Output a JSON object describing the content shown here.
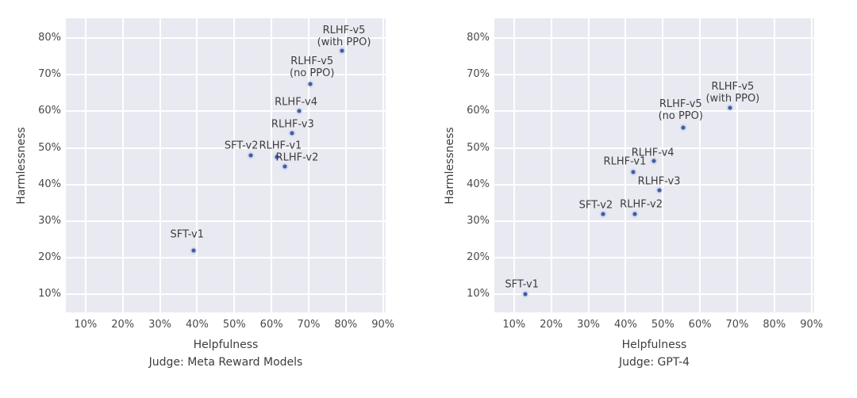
{
  "colors": {
    "figure_bg": "#ffffff",
    "plot_bg": "#e9e9f2",
    "grid": "#ffffff",
    "dot": "#3e5ca8",
    "text": "#3d3d3d",
    "tick_text": "#4a4a4a"
  },
  "chart_data": [
    {
      "type": "scatter",
      "title": "Judge: Meta Reward Models",
      "xlabel": "Helpfulness",
      "ylabel": "Harmlessness",
      "xlim": [
        4.7,
        90.7
      ],
      "ylim": [
        5.1,
        85.4
      ],
      "xticks": [
        10,
        20,
        30,
        40,
        50,
        60,
        70,
        80,
        90
      ],
      "yticks": [
        10,
        20,
        30,
        40,
        50,
        60,
        70,
        80
      ],
      "tick_suffix": "%",
      "grid": true,
      "legend": null,
      "points": [
        {
          "label": "SFT-v1",
          "x": 39,
          "y": 22,
          "label_dx": -1.7,
          "label_dy": 4.3
        },
        {
          "label": "SFT-v2",
          "x": 54.5,
          "y": 48,
          "label_dx": -2.6,
          "label_dy": 2.6
        },
        {
          "label": "RLHF-v1",
          "x": 61.5,
          "y": 47.5,
          "label_dx": 0.9,
          "label_dy": 3.0
        },
        {
          "label": "RLHF-v2",
          "x": 63.5,
          "y": 45,
          "label_dx": 3.4,
          "label_dy": 2.3
        },
        {
          "label": "RLHF-v3",
          "x": 65.5,
          "y": 54,
          "label_dx": 0.2,
          "label_dy": 2.5
        },
        {
          "label": "RLHF-v4",
          "x": 67.5,
          "y": 60,
          "label_dx": -0.9,
          "label_dy": 2.5
        },
        {
          "label": "RLHF-v5\n(no PPO)",
          "x": 70.5,
          "y": 67.5,
          "label_dx": 0.4,
          "label_dy": 4.4
        },
        {
          "label": "RLHF-v5\n(with PPO)",
          "x": 79,
          "y": 76.5,
          "label_dx": 0.5,
          "label_dy": 3.9
        }
      ]
    },
    {
      "type": "scatter",
      "title": "Judge: GPT-4",
      "xlabel": "Helpfulness",
      "ylabel": "Harmlessness",
      "xlim": [
        4.7,
        90.7
      ],
      "ylim": [
        5.1,
        85.4
      ],
      "xticks": [
        10,
        20,
        30,
        40,
        50,
        60,
        70,
        80,
        90
      ],
      "yticks": [
        10,
        20,
        30,
        40,
        50,
        60,
        70,
        80
      ],
      "tick_suffix": "%",
      "grid": true,
      "legend": null,
      "points": [
        {
          "label": "SFT-v1",
          "x": 13,
          "y": 10,
          "label_dx": -0.9,
          "label_dy": 2.7
        },
        {
          "label": "SFT-v2",
          "x": 34,
          "y": 32,
          "label_dx": -2.0,
          "label_dy": 2.4
        },
        {
          "label": "RLHF-v2",
          "x": 42.5,
          "y": 32,
          "label_dx": 1.7,
          "label_dy": 2.5
        },
        {
          "label": "RLHF-v1",
          "x": 42,
          "y": 43.5,
          "label_dx": -2.2,
          "label_dy": 2.7
        },
        {
          "label": "RLHF-v3",
          "x": 49,
          "y": 38.5,
          "label_dx": 0.0,
          "label_dy": 2.4
        },
        {
          "label": "RLHF-v4",
          "x": 47.5,
          "y": 46.5,
          "label_dx": -0.2,
          "label_dy": 2.2
        },
        {
          "label": "RLHF-v5\n(no PPO)",
          "x": 55.5,
          "y": 55.5,
          "label_dx": -0.7,
          "label_dy": 4.7
        },
        {
          "label": "RLHF-v5\n(with PPO)",
          "x": 68,
          "y": 61,
          "label_dx": 0.8,
          "label_dy": 4.1
        }
      ]
    }
  ]
}
